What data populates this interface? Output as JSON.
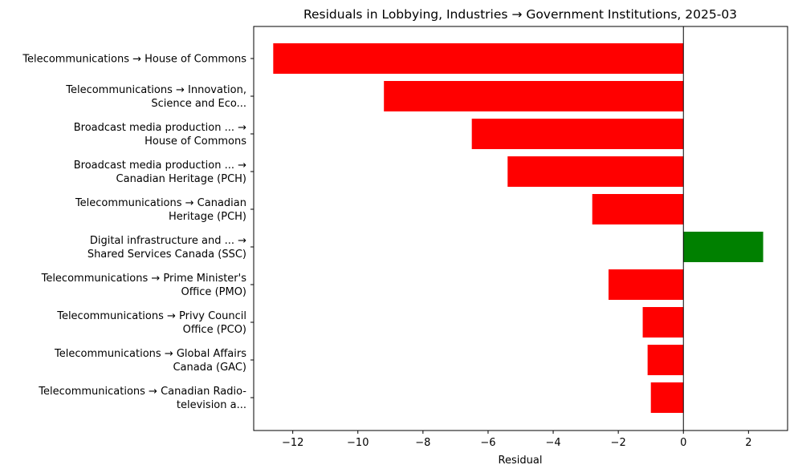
{
  "chart_data": {
    "type": "bar",
    "orientation": "horizontal",
    "title": "Residuals in Lobbying, Industries → Government Institutions, 2025-03",
    "xlabel": "Residual",
    "ylabel": "",
    "xlim": [
      -13.2,
      3.2
    ],
    "xticks": [
      -12,
      -10,
      -8,
      -6,
      -4,
      -2,
      0,
      2
    ],
    "xtick_labels": [
      "−12",
      "−10",
      "−8",
      "−6",
      "−4",
      "−2",
      "0",
      "2"
    ],
    "grid": false,
    "zero_line": true,
    "colors": {
      "negative": "#ff0000",
      "positive": "#008000"
    },
    "categories": [
      [
        "Telecommunications → House of Commons"
      ],
      [
        "Telecommunications → Innovation,",
        "Science and Eco..."
      ],
      [
        "Broadcast media production ... →",
        "House of Commons"
      ],
      [
        "Broadcast media production ... →",
        "Canadian Heritage (PCH)"
      ],
      [
        "Telecommunications → Canadian",
        "Heritage (PCH)"
      ],
      [
        "Digital infrastructure and ... →",
        "Shared Services Canada (SSC)"
      ],
      [
        "Telecommunications → Prime Minister's",
        "Office (PMO)"
      ],
      [
        "Telecommunications → Privy Council",
        "Office (PCO)"
      ],
      [
        "Telecommunications → Global Affairs",
        "Canada (GAC)"
      ],
      [
        "Telecommunications → Canadian Radio-",
        "television a..."
      ]
    ],
    "values": [
      -12.6,
      -9.2,
      -6.5,
      -5.4,
      -2.8,
      2.45,
      -2.3,
      -1.25,
      -1.1,
      -1.0
    ]
  }
}
